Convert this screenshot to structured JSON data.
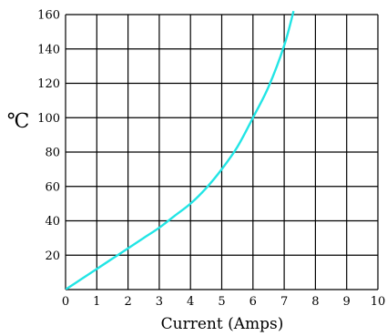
{
  "chart_data": {
    "type": "line",
    "xlabel": "Current (Amps)",
    "ylabel": "℃",
    "xlim": [
      0,
      10
    ],
    "ylim": [
      0,
      160
    ],
    "grid": true,
    "x_ticks": [
      "0",
      "1",
      "2",
      "3",
      "4",
      "5",
      "6",
      "7",
      "8",
      "9",
      "10"
    ],
    "y_ticks": [
      "20",
      "40",
      "60",
      "80",
      "100",
      "120",
      "140",
      "160"
    ],
    "series": [
      {
        "color": "#22e5e5",
        "x": [
          0,
          0.5,
          1,
          1.5,
          2,
          2.5,
          3,
          3.5,
          4,
          4.5,
          5,
          5.5,
          6,
          6.5,
          7,
          7.3
        ],
        "y": [
          0,
          6,
          12,
          18,
          24,
          30,
          36,
          43,
          50,
          59,
          70,
          83,
          100,
          118,
          142,
          162
        ]
      }
    ]
  }
}
